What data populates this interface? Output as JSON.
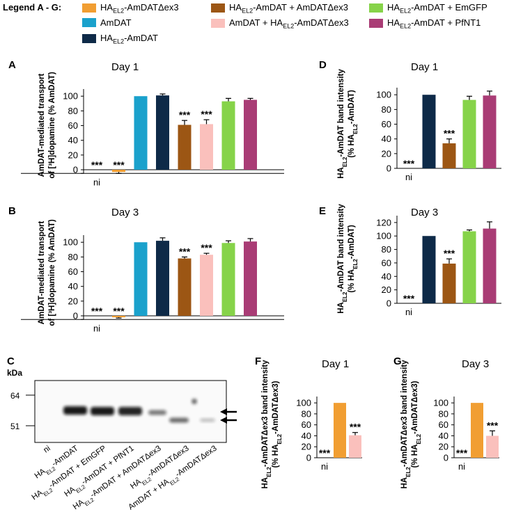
{
  "legend": {
    "title": "Legend A - G:",
    "items": [
      {
        "id": "ex3",
        "label": [
          "HA",
          "EL2",
          "-AmDATΔex3"
        ],
        "color": "#F19E32"
      },
      {
        "id": "coex",
        "label": [
          "HA",
          "EL2",
          "-AmDAT + AmDATΔex3"
        ],
        "color": "#9C5614"
      },
      {
        "id": "emgfp",
        "label": [
          "HA",
          "EL2",
          "-AmDAT + EmGFP"
        ],
        "color": "#86D349"
      },
      {
        "id": "amdat",
        "label": [
          "",
          "",
          "AmDAT"
        ],
        "color": "#1AA1CC"
      },
      {
        "id": "amdat_ha",
        "label": [
          "AmDAT + HA",
          "EL2",
          "-AmDATΔex3"
        ],
        "color": "#FAC0BC"
      },
      {
        "id": "pfnt1",
        "label": [
          "HA",
          "EL2",
          "-AmDAT + PfNT1"
        ],
        "color": "#A93C75"
      },
      {
        "id": "ha",
        "label": [
          "HA",
          "EL2",
          "-AmDAT"
        ],
        "color": "#0E2A48"
      }
    ]
  },
  "panels": {
    "A": {
      "letter": "A"
    },
    "B": {
      "letter": "B"
    },
    "C": {
      "letter": "C"
    },
    "D": {
      "letter": "D"
    },
    "E": {
      "letter": "E"
    },
    "F": {
      "letter": "F"
    },
    "G": {
      "letter": "G"
    }
  },
  "chart_data": [
    {
      "panel": "A",
      "type": "bar",
      "title": "Day 1",
      "ylabel": [
        "AmDAT-mediated transport",
        "of [³H]dopamine (% AmDAT)"
      ],
      "ylim": [
        -5,
        110
      ],
      "yticks": [
        0,
        20,
        40,
        60,
        80,
        100
      ],
      "bars": [
        {
          "color_key": "none",
          "value": 0,
          "err": 0,
          "sig": "***",
          "xlabel": "ni"
        },
        {
          "color_key": "ex3",
          "value": -3,
          "err": 2,
          "sig": "***"
        },
        {
          "color_key": "amdat",
          "value": 100,
          "err": 0
        },
        {
          "color_key": "ha",
          "value": 101,
          "err": 2
        },
        {
          "color_key": "coex",
          "value": 61,
          "err": 6,
          "sig": "***"
        },
        {
          "color_key": "amdat_ha",
          "value": 62,
          "err": 6,
          "sig": "***"
        },
        {
          "color_key": "emgfp",
          "value": 93,
          "err": 4
        },
        {
          "color_key": "pfnt1",
          "value": 95,
          "err": 2
        }
      ]
    },
    {
      "panel": "B",
      "type": "bar",
      "title": "Day 3",
      "ylabel": [
        "AmDAT-mediated transport",
        "of [³H]dopamine (% AmDAT)"
      ],
      "ylim": [
        -5,
        110
      ],
      "yticks": [
        0,
        20,
        40,
        60,
        80,
        100
      ],
      "bars": [
        {
          "color_key": "none",
          "value": 0,
          "err": 0,
          "sig": "***",
          "xlabel": "ni"
        },
        {
          "color_key": "ex3",
          "value": -2,
          "err": 1,
          "sig": "***"
        },
        {
          "color_key": "amdat",
          "value": 100,
          "err": 0
        },
        {
          "color_key": "ha",
          "value": 102,
          "err": 4
        },
        {
          "color_key": "coex",
          "value": 78,
          "err": 2,
          "sig": "***"
        },
        {
          "color_key": "amdat_ha",
          "value": 83,
          "err": 2,
          "sig": "***"
        },
        {
          "color_key": "emgfp",
          "value": 99,
          "err": 3
        },
        {
          "color_key": "pfnt1",
          "value": 101,
          "err": 4
        }
      ]
    },
    {
      "panel": "D",
      "type": "bar",
      "title": "Day 1",
      "ylabel": [
        "HAEL2-AmDAT band intensity",
        "(% HAEL2-AmDAT)"
      ],
      "ylim": [
        0,
        110
      ],
      "yticks": [
        0,
        20,
        40,
        60,
        80,
        100
      ],
      "bars": [
        {
          "color_key": "none",
          "value": 0,
          "err": 0,
          "sig": "***",
          "xlabel": "ni"
        },
        {
          "color_key": "ha",
          "value": 100,
          "err": 0
        },
        {
          "color_key": "coex",
          "value": 34,
          "err": 6,
          "sig": "***"
        },
        {
          "color_key": "emgfp",
          "value": 93,
          "err": 5
        },
        {
          "color_key": "pfnt1",
          "value": 99,
          "err": 6
        }
      ]
    },
    {
      "panel": "E",
      "type": "bar",
      "title": "Day 3",
      "ylabel": [
        "HAEL2-AmDAT band intensity",
        "(% HAEL2-AmDAT)"
      ],
      "ylim": [
        0,
        125
      ],
      "yticks": [
        0,
        20,
        40,
        60,
        80,
        100,
        120
      ],
      "bars": [
        {
          "color_key": "none",
          "value": 0,
          "err": 0,
          "sig": "***",
          "xlabel": "ni"
        },
        {
          "color_key": "ha",
          "value": 100,
          "err": 0
        },
        {
          "color_key": "coex",
          "value": 59,
          "err": 7,
          "sig": "***"
        },
        {
          "color_key": "emgfp",
          "value": 107,
          "err": 2
        },
        {
          "color_key": "pfnt1",
          "value": 111,
          "err": 10
        }
      ]
    },
    {
      "panel": "F",
      "type": "bar",
      "title": "Day 1",
      "ylabel": [
        "HAEL2-AmDATΔex3 band intensity",
        "(% HAEL2-AmDATΔex3)"
      ],
      "ylim": [
        0,
        110
      ],
      "yticks": [
        0,
        20,
        40,
        60,
        80,
        100
      ],
      "bars": [
        {
          "color_key": "none",
          "value": 0,
          "err": 0,
          "sig": "***",
          "xlabel": "ni"
        },
        {
          "color_key": "ex3",
          "value": 100,
          "err": 0
        },
        {
          "color_key": "amdat_ha",
          "value": 41,
          "err": 5,
          "sig": "***"
        }
      ]
    },
    {
      "panel": "G",
      "type": "bar",
      "title": "Day 3",
      "ylabel": [
        "HAEL2-AmDATΔex3 band intensity",
        "(% HAEL2-AmDATΔex3)"
      ],
      "ylim": [
        0,
        110
      ],
      "yticks": [
        0,
        20,
        40,
        60,
        80,
        100
      ],
      "bars": [
        {
          "color_key": "none",
          "value": 0,
          "err": 0,
          "sig": "***",
          "xlabel": "ni"
        },
        {
          "color_key": "ex3",
          "value": 100,
          "err": 0
        },
        {
          "color_key": "amdat_ha",
          "value": 40,
          "err": 9,
          "sig": "***"
        }
      ]
    }
  ],
  "blot": {
    "unit": "kDa",
    "markers": [
      "64",
      "51"
    ],
    "lanes": [
      "ni",
      "HAEL2-AmDAT",
      "HAEL2-AmDAT + EmGFP",
      "HAEL2-AmDAT + PfNT1",
      "HAEL2-AmDAT + AmDATΔex3",
      "HAEL2-AmDATΔex3",
      "AmDAT + HAEL2-AmDATΔex3"
    ]
  }
}
